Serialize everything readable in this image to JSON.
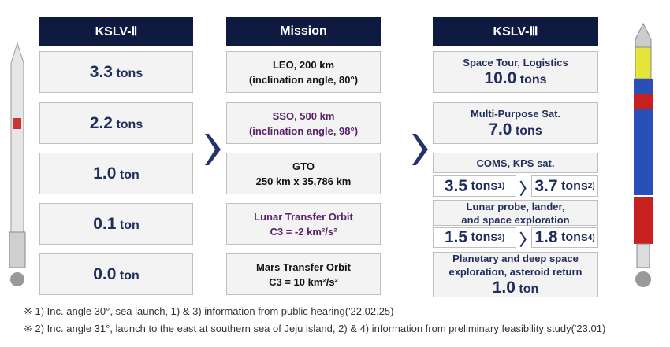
{
  "header": {
    "left": "KSLV-Ⅱ",
    "middle": "Mission",
    "right": "KSLV-Ⅲ"
  },
  "kslv2": [
    {
      "value": "3.3",
      "unit": "tons"
    },
    {
      "value": "2.2",
      "unit": "tons"
    },
    {
      "value": "1.0",
      "unit": "ton"
    },
    {
      "value": "0.1",
      "unit": "ton"
    },
    {
      "value": "0.0",
      "unit": "ton"
    }
  ],
  "missions": [
    {
      "line1": "LEO, 200 km",
      "line2": "(inclination angle, 80°)"
    },
    {
      "line1": "SSO, 500 km",
      "line2": "(inclination angle, 98°)"
    },
    {
      "line1": "GTO",
      "line2": "250 km x 35,786 km"
    },
    {
      "line1": "Lunar Transfer Orbit",
      "line2": "C3 = -2 km²/s²"
    },
    {
      "line1": "Mars Transfer Orbit",
      "line2": "C3 = 10 km²/s²"
    }
  ],
  "kslv3": [
    {
      "label": "Space Tour, Logistics",
      "value": "10.0",
      "unit": "tons"
    },
    {
      "label": "Multi-Purpose Sat.",
      "value": "7.0",
      "unit": "tons"
    },
    {
      "label": "COMS, KPS sat.",
      "a": {
        "value": "3.5",
        "unit": "tons",
        "note": "1)"
      },
      "b": {
        "value": "3.7",
        "unit": "tons",
        "note": "2)"
      }
    },
    {
      "label1": "Lunar probe, lander,",
      "label2": "and space exploration",
      "a": {
        "value": "1.5",
        "unit": "tons",
        "note": "3)"
      },
      "b": {
        "value": "1.8",
        "unit": "tons",
        "note": "4)"
      }
    },
    {
      "label1": "Planetary and deep space",
      "label2": "exploration, asteroid return",
      "value": "1.0",
      "unit": "ton"
    }
  ],
  "footnotes": [
    "※ 1) Inc. angle 30°, sea launch, 1) & 3) information from public hearing('22.02.25)",
    "※ 2) Inc. angle 31°, launch to the east at southern sea of Jeju island, 2) & 4) information from preliminary feasibility study('23.01)"
  ]
}
